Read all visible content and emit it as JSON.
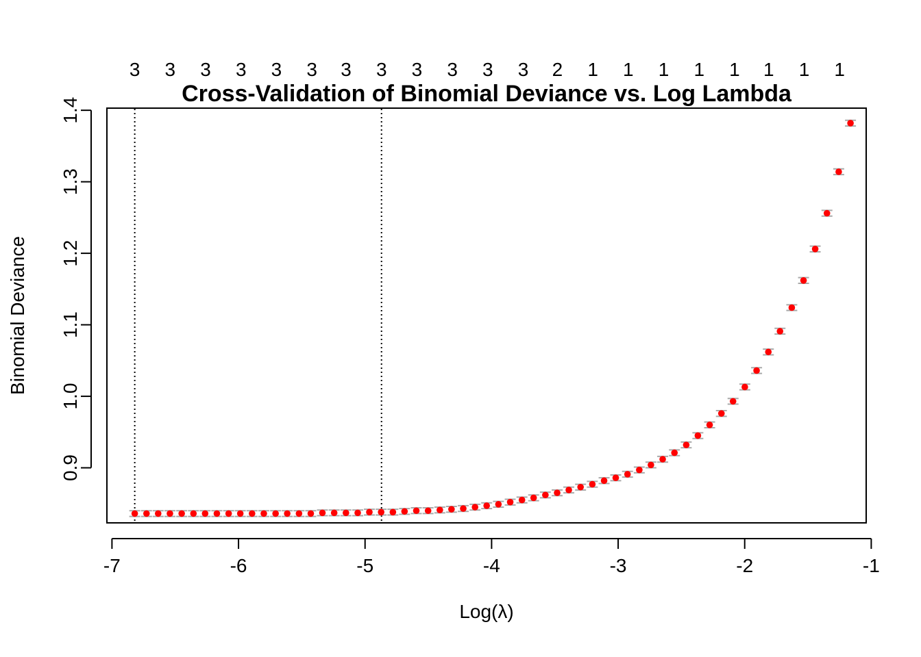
{
  "chart_data": {
    "type": "scatter",
    "title": "Cross-Validation of Binomial Deviance vs. Log Lambda",
    "xlabel": "Log(λ)",
    "ylabel": "Binomial Deviance",
    "xlim": [
      -7.04,
      -1.04
    ],
    "ylim": [
      0.823,
      1.403
    ],
    "x_ticks": [
      -7,
      -6,
      -5,
      -4,
      -3,
      -2,
      -1
    ],
    "y_ticks": [
      0.9,
      1.0,
      1.1,
      1.2,
      1.3,
      1.4
    ],
    "x_tick_labels": [
      "-7",
      "-6",
      "-5",
      "-4",
      "-3",
      "-2",
      "-1"
    ],
    "y_tick_labels": [
      "0.9",
      "1.0",
      "1.1",
      "1.2",
      "1.3",
      "1.4"
    ],
    "vlines": [
      -6.82,
      -4.87
    ],
    "top_axis": {
      "positions": [
        -6.82,
        -6.54,
        -6.26,
        -5.98,
        -5.7,
        -5.42,
        -5.15,
        -4.87,
        -4.59,
        -4.31,
        -4.03,
        -3.75,
        -3.48,
        -3.2,
        -2.92,
        -2.64,
        -2.36,
        -2.08,
        -1.81,
        -1.53,
        -1.25
      ],
      "labels": [
        "3",
        "3",
        "3",
        "3",
        "3",
        "3",
        "3",
        "3",
        "3",
        "3",
        "3",
        "3",
        "2",
        "1",
        "1",
        "1",
        "1",
        "1",
        "1",
        "1",
        "1"
      ]
    },
    "series": [
      {
        "color": "#ff0000",
        "errorbar_color": "#a9a9a9",
        "x": [
          -6.82,
          -6.727,
          -6.635,
          -6.542,
          -6.449,
          -6.356,
          -6.264,
          -6.171,
          -6.078,
          -5.986,
          -5.893,
          -5.8,
          -5.707,
          -5.615,
          -5.522,
          -5.429,
          -5.337,
          -5.244,
          -5.151,
          -5.058,
          -4.966,
          -4.873,
          -4.78,
          -4.688,
          -4.595,
          -4.502,
          -4.409,
          -4.317,
          -4.224,
          -4.131,
          -4.039,
          -3.946,
          -3.853,
          -3.76,
          -3.668,
          -3.575,
          -3.482,
          -3.39,
          -3.297,
          -3.204,
          -3.111,
          -3.019,
          -2.926,
          -2.833,
          -2.741,
          -2.648,
          -2.555,
          -2.462,
          -2.37,
          -2.277,
          -2.184,
          -2.092,
          -1.999,
          -1.906,
          -1.813,
          -1.721,
          -1.628,
          -1.535,
          -1.443,
          -1.35,
          -1.257,
          -1.164
        ],
        "y": [
          0.836,
          0.836,
          0.836,
          0.836,
          0.836,
          0.836,
          0.836,
          0.836,
          0.836,
          0.836,
          0.836,
          0.836,
          0.836,
          0.836,
          0.836,
          0.836,
          0.837,
          0.837,
          0.837,
          0.837,
          0.838,
          0.838,
          0.838,
          0.839,
          0.84,
          0.84,
          0.841,
          0.842,
          0.843,
          0.845,
          0.847,
          0.849,
          0.852,
          0.855,
          0.858,
          0.862,
          0.865,
          0.869,
          0.873,
          0.877,
          0.882,
          0.886,
          0.891,
          0.897,
          0.904,
          0.912,
          0.921,
          0.932,
          0.945,
          0.96,
          0.976,
          0.993,
          1.013,
          1.036,
          1.062,
          1.091,
          1.124,
          1.162,
          1.206,
          1.256,
          1.314,
          1.382
        ],
        "se": [
          0.004,
          0.004,
          0.004,
          0.004,
          0.004,
          0.004,
          0.004,
          0.004,
          0.004,
          0.004,
          0.004,
          0.004,
          0.004,
          0.004,
          0.004,
          0.004,
          0.004,
          0.004,
          0.004,
          0.004,
          0.004,
          0.004,
          0.004,
          0.004,
          0.004,
          0.004,
          0.004,
          0.004,
          0.004,
          0.004,
          0.004,
          0.004,
          0.004,
          0.004,
          0.004,
          0.004,
          0.004,
          0.004,
          0.004,
          0.004,
          0.004,
          0.004,
          0.004,
          0.004,
          0.004,
          0.004,
          0.004,
          0.004,
          0.004,
          0.004,
          0.004,
          0.004,
          0.004,
          0.004,
          0.004,
          0.004,
          0.004,
          0.004,
          0.004,
          0.004,
          0.004,
          0.004
        ]
      }
    ]
  }
}
